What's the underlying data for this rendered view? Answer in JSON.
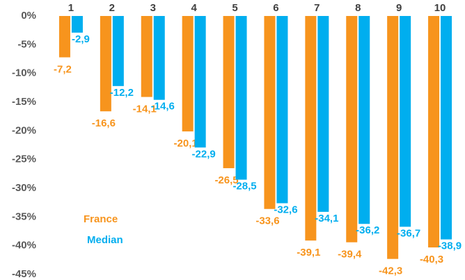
{
  "chart_data": {
    "type": "bar",
    "categories": [
      "1",
      "2",
      "3",
      "4",
      "5",
      "6",
      "7",
      "8",
      "9",
      "10"
    ],
    "series": [
      {
        "name": "France",
        "color": "#f7941d",
        "values": [
          -7.2,
          -16.6,
          -14.1,
          -20.1,
          -26.5,
          -33.6,
          -39.1,
          -39.4,
          -42.3,
          -40.3
        ],
        "value_labels": [
          "-7,2",
          "-16,6",
          "-14,1",
          "-20,1",
          "-26,5",
          "-33,6",
          "-39,1",
          "-39,4",
          "-42,3",
          "-40,3"
        ]
      },
      {
        "name": "Median",
        "color": "#00aeef",
        "values": [
          -2.9,
          -12.2,
          -14.6,
          -22.9,
          -28.5,
          -32.6,
          -34.1,
          -36.2,
          -36.7,
          -38.9
        ],
        "value_labels": [
          "-2,9",
          "-12,2",
          "-14,6",
          "-22,9",
          "-28,5",
          "-32,6",
          "-34,1",
          "-36,2",
          "-36,7",
          "-38,9"
        ]
      }
    ],
    "ylim": [
      -45,
      0
    ],
    "yticks": [
      {
        "value": 0,
        "label": "0%"
      },
      {
        "value": -5,
        "label": "-5%"
      },
      {
        "value": -10,
        "label": "-10%"
      },
      {
        "value": -15,
        "label": "-15%"
      },
      {
        "value": -20,
        "label": "-20%"
      },
      {
        "value": -25,
        "label": "-25%"
      },
      {
        "value": -30,
        "label": "-30%"
      },
      {
        "value": -35,
        "label": "-35%"
      },
      {
        "value": -40,
        "label": "-40%"
      },
      {
        "value": -45,
        "label": "-45%"
      }
    ],
    "grid": false,
    "legend": "lower left"
  }
}
